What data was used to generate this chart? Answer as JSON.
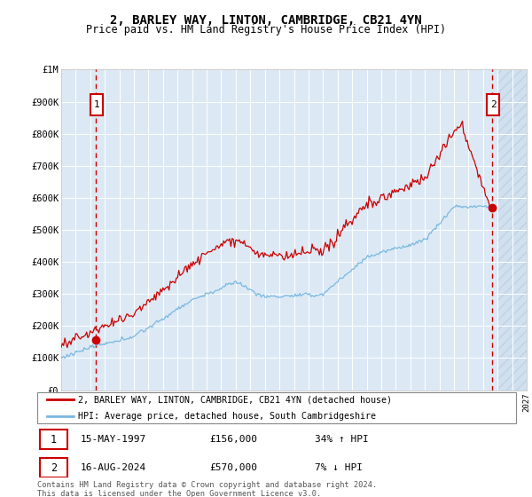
{
  "title": "2, BARLEY WAY, LINTON, CAMBRIDGE, CB21 4YN",
  "subtitle": "Price paid vs. HM Land Registry's House Price Index (HPI)",
  "bg_color": "#dce9f5",
  "grid_color": "#ffffff",
  "hpi_color": "#7ab8e0",
  "price_color": "#cc0000",
  "ylim": [
    0,
    1000000
  ],
  "yticks": [
    0,
    100000,
    200000,
    300000,
    400000,
    500000,
    600000,
    700000,
    800000,
    900000,
    1000000
  ],
  "ytick_labels": [
    "£0",
    "£100K",
    "£200K",
    "£300K",
    "£400K",
    "£500K",
    "£600K",
    "£700K",
    "£800K",
    "£900K",
    "£1M"
  ],
  "year_start": 1995,
  "year_end": 2027,
  "sale1_year": 1997.37,
  "sale1_price": 156000,
  "sale2_year": 2024.62,
  "sale2_price": 570000,
  "legend_line1": "2, BARLEY WAY, LINTON, CAMBRIDGE, CB21 4YN (detached house)",
  "legend_line2": "HPI: Average price, detached house, South Cambridgeshire",
  "label1_date": "15-MAY-1997",
  "label1_price": "£156,000",
  "label1_hpi": "34% ↑ HPI",
  "label2_date": "16-AUG-2024",
  "label2_price": "£570,000",
  "label2_hpi": "7% ↓ HPI",
  "footnote": "Contains HM Land Registry data © Crown copyright and database right 2024.\nThis data is licensed under the Open Government Licence v3.0."
}
